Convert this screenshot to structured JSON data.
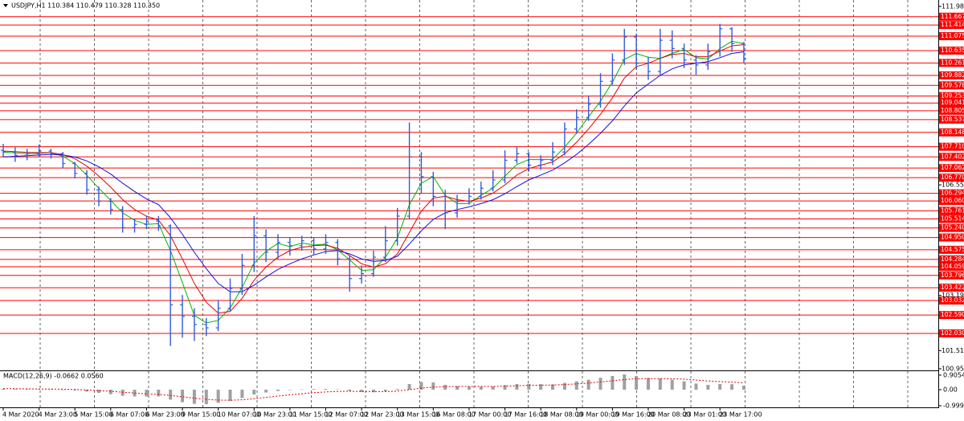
{
  "chart_data": {
    "type": "ohlc",
    "title": "USDJPY,H1 110.384 110.479 110.328 110.350",
    "categories": [
      "4 Mar 2020",
      null,
      null,
      "4 Mar 23:00",
      null,
      null,
      "5 Mar 15:00",
      null,
      null,
      "6 Mar 07:00",
      null,
      null,
      "6 Mar 23:00",
      null,
      null,
      "9 Mar 15:00",
      null,
      null,
      "10 Mar 07:00",
      null,
      null,
      "10 Mar 23:00",
      null,
      null,
      "11 Mar 15:00",
      null,
      null,
      "12 Mar 07:00",
      null,
      null,
      "12 Mar 23:00",
      null,
      null,
      "13 Mar 15:00",
      null,
      null,
      "16 Mar 08:00",
      null,
      null,
      "17 Mar 00:00",
      null,
      null,
      "17 Mar 16:00",
      null,
      null,
      "18 Mar 08:00",
      null,
      null,
      "19 Mar 00:00",
      null,
      null,
      "19 Mar 16:00",
      null,
      null,
      "20 Mar 08:00",
      null,
      null,
      "23 Mar 01:00",
      null,
      null,
      "23 Mar 17:00",
      null,
      null
    ],
    "open": [
      107.6,
      107.55,
      107.45,
      107.5,
      107.58,
      107.5,
      107.2,
      106.9,
      106.4,
      106.05,
      105.8,
      105.25,
      105.35,
      105.45,
      105.3,
      102.9,
      102.55,
      102.3,
      102.2,
      102.8,
      103.4,
      104.1,
      105.0,
      104.5,
      104.8,
      104.7,
      104.85,
      104.6,
      104.8,
      104.3,
      103.7,
      103.85,
      104.35,
      104.85,
      105.6,
      107.4,
      106.8,
      106.2,
      105.7,
      106.05,
      106.2,
      106.45,
      106.7,
      107.3,
      107.5,
      107.15,
      107.3,
      107.55,
      108.25,
      108.6,
      109.0,
      109.7,
      110.35,
      111.05,
      110.25,
      110.0,
      110.95,
      110.7,
      110.35,
      110.2,
      110.6,
      111.3,
      110.85
    ],
    "high": [
      107.8,
      107.7,
      107.65,
      107.78,
      107.65,
      107.55,
      107.25,
      107.0,
      106.5,
      106.15,
      105.9,
      105.5,
      105.6,
      105.6,
      105.35,
      103.2,
      102.8,
      102.5,
      103.05,
      103.7,
      104.45,
      105.6,
      105.2,
      105.05,
      104.95,
      105.0,
      104.95,
      105.05,
      104.9,
      104.4,
      104.1,
      104.55,
      105.3,
      105.85,
      108.45,
      107.55,
      106.95,
      106.4,
      106.25,
      106.45,
      106.65,
      107.0,
      107.6,
      107.7,
      107.55,
      107.45,
      107.85,
      108.45,
      108.85,
      109.25,
      109.95,
      110.55,
      111.3,
      111.15,
      110.45,
      111.3,
      111.25,
      110.85,
      110.5,
      110.85,
      111.45,
      111.35,
      110.9
    ],
    "low": [
      107.4,
      107.25,
      107.3,
      107.4,
      107.35,
      107.05,
      106.75,
      106.25,
      105.9,
      105.65,
      105.1,
      105.1,
      105.2,
      105.15,
      101.65,
      101.9,
      101.8,
      101.95,
      102.1,
      102.7,
      103.2,
      103.9,
      104.2,
      104.3,
      104.4,
      104.55,
      104.4,
      104.45,
      104.1,
      103.3,
      103.55,
      103.75,
      104.2,
      104.7,
      105.5,
      106.3,
      105.9,
      105.2,
      105.55,
      105.95,
      106.1,
      106.35,
      106.6,
      107.2,
      106.95,
      107.0,
      107.15,
      107.45,
      108.1,
      108.5,
      108.9,
      109.6,
      110.2,
      110.05,
      109.75,
      109.9,
      110.4,
      110.1,
      109.9,
      110.05,
      110.45,
      110.6,
      110.25
    ],
    "close": [
      107.55,
      107.45,
      107.5,
      107.58,
      107.5,
      107.2,
      106.9,
      106.4,
      106.05,
      105.8,
      105.25,
      105.35,
      105.45,
      105.3,
      102.9,
      102.55,
      102.3,
      102.2,
      102.8,
      103.4,
      104.1,
      105.0,
      104.5,
      104.8,
      104.7,
      104.85,
      104.6,
      104.8,
      104.3,
      103.7,
      103.85,
      104.35,
      104.85,
      105.6,
      107.4,
      106.8,
      106.2,
      105.7,
      106.05,
      106.2,
      106.45,
      106.7,
      107.3,
      107.5,
      107.15,
      107.3,
      107.55,
      108.25,
      108.6,
      109.0,
      109.7,
      110.35,
      111.05,
      110.25,
      110.0,
      110.95,
      110.7,
      110.35,
      110.2,
      110.6,
      111.3,
      110.85,
      110.4
    ],
    "color": "#2f5bd8",
    "ylim": [
      100.955,
      111.98
    ],
    "yticks": [
      {
        "value": 111.98,
        "label": "111.980"
      },
      {
        "value": 106.55,
        "label": "106.550"
      },
      {
        "value": 103.19,
        "label": "103.190"
      },
      {
        "value": 101.51,
        "label": "101.510"
      },
      100.955
    ],
    "levels": [
      111.667,
      111.414,
      111.075,
      110.635,
      110.261,
      109.882,
      109.578,
      109.253,
      109.041,
      108.805,
      108.537,
      108.148,
      {
        "value": 107.71,
        "label": "107.710"
      },
      107.402,
      107.062,
      {
        "value": 106.77,
        "label": "106.770"
      },
      106.294,
      {
        "value": 106.06,
        "label": "106.060"
      },
      105.761,
      105.514,
      {
        "value": 105.24,
        "label": "105.240"
      },
      {
        "value": 104.95,
        "label": "104.950"
      },
      104.575,
      104.284,
      104.059,
      103.796,
      103.422,
      103.032,
      {
        "value": 102.59,
        "label": "102.590"
      },
      {
        "value": 102.03,
        "label": "102.030"
      }
    ],
    "level_color": "#ff0000",
    "overlays": [
      {
        "color": "#00b400",
        "values": [
          107.55,
          107.52,
          107.5,
          107.51,
          107.53,
          107.42,
          107.2,
          106.84,
          106.45,
          106.08,
          105.7,
          105.47,
          105.35,
          105.37,
          104.55,
          103.58,
          102.58,
          102.35,
          102.43,
          102.8,
          103.43,
          104.17,
          104.53,
          104.77,
          104.67,
          104.78,
          104.72,
          104.75,
          104.57,
          104.27,
          103.95,
          103.97,
          104.35,
          104.93,
          105.95,
          106.6,
          106.8,
          106.23,
          105.98,
          105.98,
          106.23,
          106.45,
          106.82,
          107.17,
          107.32,
          107.32,
          107.33,
          107.7,
          108.13,
          108.62,
          109.1,
          109.68,
          110.37,
          110.55,
          110.43,
          110.4,
          110.55,
          110.67,
          110.42,
          110.38,
          110.7,
          110.92,
          110.85
        ]
      },
      {
        "color": "#e00000",
        "values": [
          107.58,
          107.56,
          107.54,
          107.53,
          107.53,
          107.47,
          107.35,
          107.12,
          106.82,
          106.48,
          106.1,
          105.8,
          105.6,
          105.48,
          105.0,
          104.3,
          103.55,
          102.98,
          102.65,
          102.7,
          103.1,
          103.65,
          104.05,
          104.35,
          104.55,
          104.65,
          104.7,
          104.72,
          104.62,
          104.4,
          104.15,
          104.05,
          104.15,
          104.45,
          105.1,
          105.75,
          106.15,
          106.2,
          106.1,
          106.05,
          106.15,
          106.3,
          106.55,
          106.85,
          107.05,
          107.15,
          107.25,
          107.5,
          107.85,
          108.25,
          108.7,
          109.2,
          109.8,
          110.15,
          110.25,
          110.4,
          110.52,
          110.55,
          110.45,
          110.45,
          110.62,
          110.78,
          110.82
        ]
      },
      {
        "color": "#1010e0",
        "values": [
          107.4,
          107.42,
          107.44,
          107.46,
          107.48,
          107.46,
          107.4,
          107.28,
          107.1,
          106.88,
          106.6,
          106.35,
          106.12,
          105.95,
          105.55,
          105.05,
          104.5,
          104.0,
          103.55,
          103.3,
          103.3,
          103.5,
          103.75,
          103.98,
          104.15,
          104.3,
          104.42,
          104.52,
          104.55,
          104.45,
          104.3,
          104.22,
          104.25,
          104.38,
          104.75,
          105.15,
          105.5,
          105.7,
          105.8,
          105.88,
          105.98,
          106.1,
          106.28,
          106.5,
          106.7,
          106.85,
          107.0,
          107.22,
          107.48,
          107.78,
          108.12,
          108.5,
          108.95,
          109.35,
          109.62,
          109.88,
          110.08,
          110.2,
          110.25,
          110.3,
          110.42,
          110.55,
          110.6
        ]
      }
    ],
    "indicator": {
      "title": "MACD(12,26,9) -0.0662 0.0560",
      "ylim": [
        -1.1,
        1.1
      ],
      "yticks": [
        0.9054,
        {
          "value": 0,
          "label": "0.00"
        },
        -0.9998
      ],
      "histogram": {
        "color": "#a0a0a0",
        "values": [
          0.05,
          0.04,
          0.03,
          0.03,
          0.02,
          0.0,
          -0.05,
          -0.12,
          -0.2,
          -0.28,
          -0.38,
          -0.42,
          -0.43,
          -0.42,
          -0.62,
          -0.78,
          -0.88,
          -0.9,
          -0.82,
          -0.7,
          -0.52,
          -0.3,
          -0.18,
          -0.08,
          -0.02,
          0.02,
          0.04,
          0.05,
          0.02,
          -0.08,
          -0.15,
          -0.16,
          -0.1,
          0.05,
          0.35,
          0.48,
          0.45,
          0.3,
          0.22,
          0.18,
          0.18,
          0.2,
          0.28,
          0.35,
          0.36,
          0.34,
          0.33,
          0.42,
          0.52,
          0.62,
          0.74,
          0.85,
          0.95,
          0.85,
          0.72,
          0.7,
          0.62,
          0.52,
          0.38,
          0.3,
          0.35,
          0.34,
          0.25
        ]
      },
      "signal": {
        "color": "#e00000",
        "values": [
          0.06,
          0.06,
          0.05,
          0.04,
          0.04,
          0.03,
          0.01,
          -0.02,
          -0.06,
          -0.1,
          -0.16,
          -0.21,
          -0.26,
          -0.29,
          -0.36,
          -0.44,
          -0.53,
          -0.6,
          -0.65,
          -0.66,
          -0.63,
          -0.56,
          -0.48,
          -0.4,
          -0.32,
          -0.25,
          -0.19,
          -0.14,
          -0.11,
          -0.1,
          -0.11,
          -0.12,
          -0.12,
          -0.09,
          0.0,
          0.09,
          0.16,
          0.19,
          0.2,
          0.2,
          0.2,
          0.2,
          0.22,
          0.24,
          0.27,
          0.28,
          0.29,
          0.32,
          0.36,
          0.41,
          0.48,
          0.55,
          0.63,
          0.68,
          0.69,
          0.69,
          0.68,
          0.65,
          0.6,
          0.54,
          0.5,
          0.47,
          0.43
        ]
      }
    }
  }
}
